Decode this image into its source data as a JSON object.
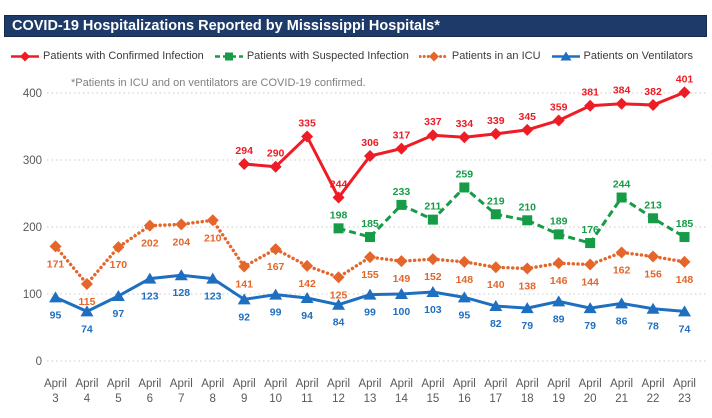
{
  "title": "COVID-19 Hospitalizations Reported by Mississippi Hospitals*",
  "footnote": "*Patients in ICU and on ventilators are COVID-19 confirmed.",
  "title_bar_color": "#1e3a68",
  "chart_data": {
    "type": "line",
    "title": "COVID-19 Hospitalizations Reported by Mississippi Hospitals*",
    "categories": [
      "April 3",
      "April 4",
      "April 5",
      "April 6",
      "April 7",
      "April 8",
      "April 9",
      "April 10",
      "April 11",
      "April 12",
      "April 13",
      "April 14",
      "April 15",
      "April 16",
      "April 17",
      "April 18",
      "April 19",
      "April 20",
      "April 21",
      "April 22",
      "April 23"
    ],
    "yticks": [
      0,
      100,
      200,
      300,
      400
    ],
    "ylim": [
      0,
      400
    ],
    "grid": "horizontal-dotted",
    "legend_position": "top",
    "series": [
      {
        "key": "confirmed",
        "name": "Patients with Confirmed Infection",
        "color": "#ee1c25",
        "marker": "diamond",
        "line": "solid",
        "label_position": "above",
        "start_index": 6,
        "values": [
          294,
          290,
          335,
          244,
          306,
          317,
          337,
          334,
          339,
          345,
          359,
          381,
          384,
          382,
          401
        ]
      },
      {
        "key": "suspected",
        "name": "Patients with Suspected Infection",
        "color": "#169c47",
        "marker": "square",
        "line": "dashed",
        "label_position": "above",
        "start_index": 9,
        "values": [
          198,
          185,
          233,
          211,
          259,
          219,
          210,
          189,
          176,
          244,
          213,
          185
        ]
      },
      {
        "key": "icu",
        "name": "Patients in an ICU",
        "color": "#e4662b",
        "marker": "diamond",
        "line": "dotted",
        "label_position": "below",
        "start_index": 0,
        "values": [
          171,
          115,
          170,
          202,
          204,
          210,
          141,
          167,
          142,
          125,
          155,
          149,
          152,
          148,
          140,
          138,
          146,
          144,
          162,
          156,
          148
        ]
      },
      {
        "key": "ventilators",
        "name": "Patients on Ventilators",
        "color": "#1e6fc0",
        "marker": "triangle",
        "line": "solid",
        "label_position": "below",
        "start_index": 0,
        "values": [
          95,
          74,
          97,
          123,
          128,
          123,
          92,
          99,
          94,
          84,
          99,
          100,
          103,
          95,
          82,
          79,
          89,
          79,
          86,
          78,
          74
        ]
      }
    ]
  }
}
